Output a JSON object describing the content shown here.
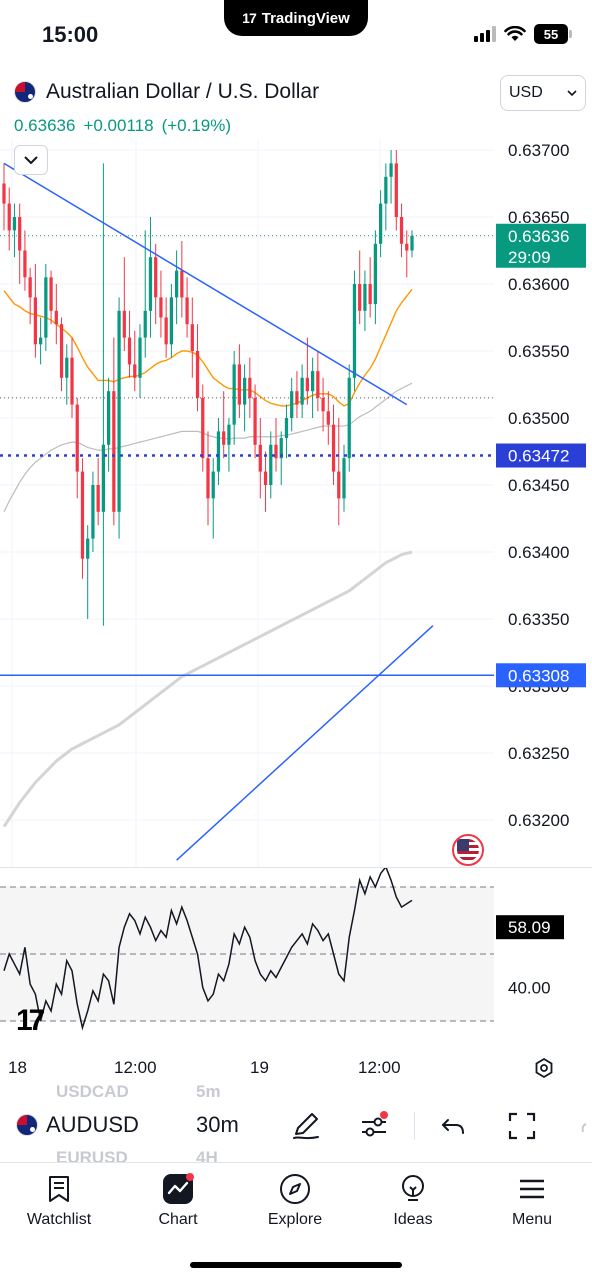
{
  "status_bar": {
    "time": "15:00",
    "battery": "55",
    "app_name": "TradingView"
  },
  "symbol": {
    "full_name": "Australian Dollar / U.S. Dollar",
    "last_price": "0.63636",
    "change": "+0.00118",
    "change_pct": "(+0.19%)",
    "currency": "USD"
  },
  "price_axis": {
    "ticks": [
      "0.63700",
      "0.63650",
      "0.63600",
      "0.63550",
      "0.63500",
      "0.63450",
      "0.63400",
      "0.63350",
      "0.63300",
      "0.63250",
      "0.63200"
    ],
    "last_price_tag": "0.63636",
    "countdown_tag": "29:09",
    "alert_line_tag": "0.63472",
    "horizontal_line_tag": "0.63308"
  },
  "indicator_pane": {
    "value_tag": "58.09",
    "level_label": "40.00"
  },
  "time_axis": {
    "labels": [
      "18",
      "12:00",
      "19",
      "12:00"
    ]
  },
  "toolbar": {
    "ghost_top_symbol": "USDCAD",
    "ghost_top_interval": "5m",
    "ghost_bottom_symbol": "EURUSD",
    "ghost_bottom_interval": "4H",
    "symbol": "AUDUSD",
    "interval": "30m"
  },
  "nav": [
    {
      "label": "Watchlist",
      "icon": "watchlist-icon"
    },
    {
      "label": "Chart",
      "icon": "chart-icon"
    },
    {
      "label": "Explore",
      "icon": "compass-icon"
    },
    {
      "label": "Ideas",
      "icon": "lightbulb-icon"
    },
    {
      "label": "Menu",
      "icon": "hamburger-icon"
    }
  ],
  "colors": {
    "up": "#089981",
    "down": "#f23645",
    "trendline": "#2962ff",
    "ma_fast": "#ff9800",
    "ma_slow": "#c8c8c8",
    "alert_line": "#2a3fd6"
  },
  "chart_data": {
    "type": "candlestick",
    "timeframe": "30m",
    "ylim": [
      0.6317,
      0.6373
    ],
    "candles": [
      [
        0.63675,
        0.6369,
        0.6364,
        0.6366
      ],
      [
        0.6366,
        0.63672,
        0.63625,
        0.6364
      ],
      [
        0.6364,
        0.6366,
        0.6362,
        0.6365
      ],
      [
        0.6365,
        0.6366,
        0.636,
        0.63625
      ],
      [
        0.63625,
        0.6364,
        0.63595,
        0.63605
      ],
      [
        0.63605,
        0.63612,
        0.6357,
        0.6359
      ],
      [
        0.6359,
        0.63615,
        0.63545,
        0.63555
      ],
      [
        0.63555,
        0.63575,
        0.6354,
        0.6356
      ],
      [
        0.6356,
        0.63615,
        0.6355,
        0.63605
      ],
      [
        0.63605,
        0.6361,
        0.6357,
        0.6358
      ],
      [
        0.6358,
        0.636,
        0.63555,
        0.6357
      ],
      [
        0.6357,
        0.63575,
        0.6352,
        0.6353
      ],
      [
        0.6353,
        0.63555,
        0.6351,
        0.63545
      ],
      [
        0.63545,
        0.6356,
        0.635,
        0.6351
      ],
      [
        0.6351,
        0.63515,
        0.6344,
        0.6346
      ],
      [
        0.6346,
        0.6347,
        0.6338,
        0.63395
      ],
      [
        0.63395,
        0.6342,
        0.6335,
        0.6341
      ],
      [
        0.6341,
        0.6346,
        0.634,
        0.6345
      ],
      [
        0.6345,
        0.6347,
        0.6342,
        0.6343
      ],
      [
        0.6343,
        0.6369,
        0.63345,
        0.6348
      ],
      [
        0.6348,
        0.6353,
        0.6346,
        0.6352
      ],
      [
        0.6352,
        0.6356,
        0.6342,
        0.6343
      ],
      [
        0.6343,
        0.6359,
        0.6341,
        0.6358
      ],
      [
        0.6358,
        0.6362,
        0.6355,
        0.6356
      ],
      [
        0.6356,
        0.6358,
        0.6353,
        0.6354
      ],
      [
        0.6354,
        0.63565,
        0.6352,
        0.6353
      ],
      [
        0.6353,
        0.6357,
        0.63515,
        0.6356
      ],
      [
        0.6356,
        0.6364,
        0.63545,
        0.6358
      ],
      [
        0.6358,
        0.6365,
        0.6356,
        0.6362
      ],
      [
        0.6362,
        0.6363,
        0.6357,
        0.6359
      ],
      [
        0.6359,
        0.6361,
        0.6356,
        0.63575
      ],
      [
        0.63575,
        0.6359,
        0.63545,
        0.63555
      ],
      [
        0.63555,
        0.636,
        0.63545,
        0.6359
      ],
      [
        0.6359,
        0.63625,
        0.6357,
        0.6361
      ],
      [
        0.6361,
        0.63632,
        0.63575,
        0.6359
      ],
      [
        0.6359,
        0.63605,
        0.6356,
        0.6357
      ],
      [
        0.6357,
        0.6359,
        0.6353,
        0.6355
      ],
      [
        0.6355,
        0.6357,
        0.63505,
        0.63515
      ],
      [
        0.63515,
        0.63525,
        0.6346,
        0.6347
      ],
      [
        0.6347,
        0.6349,
        0.6342,
        0.6344
      ],
      [
        0.6344,
        0.6347,
        0.6341,
        0.6346
      ],
      [
        0.6346,
        0.635,
        0.6345,
        0.6349
      ],
      [
        0.6349,
        0.6352,
        0.6347,
        0.6348
      ],
      [
        0.6348,
        0.635,
        0.6346,
        0.63495
      ],
      [
        0.63495,
        0.6355,
        0.6348,
        0.6354
      ],
      [
        0.6354,
        0.63555,
        0.635,
        0.6351
      ],
      [
        0.6351,
        0.6354,
        0.6349,
        0.6353
      ],
      [
        0.6353,
        0.63545,
        0.635,
        0.63515
      ],
      [
        0.63515,
        0.63525,
        0.6347,
        0.6348
      ],
      [
        0.6348,
        0.635,
        0.6344,
        0.6346
      ],
      [
        0.6346,
        0.63475,
        0.6343,
        0.6345
      ],
      [
        0.6345,
        0.6349,
        0.6344,
        0.6348
      ],
      [
        0.6348,
        0.635,
        0.6346,
        0.6347
      ],
      [
        0.6347,
        0.6349,
        0.6345,
        0.63485
      ],
      [
        0.63485,
        0.6351,
        0.6347,
        0.635
      ],
      [
        0.635,
        0.6353,
        0.6349,
        0.6352
      ],
      [
        0.6352,
        0.63535,
        0.635,
        0.6351
      ],
      [
        0.6351,
        0.6354,
        0.635,
        0.6353
      ],
      [
        0.6353,
        0.6356,
        0.6351,
        0.6352
      ],
      [
        0.6352,
        0.63545,
        0.635,
        0.63535
      ],
      [
        0.63535,
        0.6355,
        0.63505,
        0.63515
      ],
      [
        0.63515,
        0.6353,
        0.6349,
        0.63505
      ],
      [
        0.63505,
        0.6352,
        0.6348,
        0.63495
      ],
      [
        0.63495,
        0.6351,
        0.6345,
        0.6346
      ],
      [
        0.6346,
        0.635,
        0.6342,
        0.6344
      ],
      [
        0.6344,
        0.6348,
        0.6343,
        0.6347
      ],
      [
        0.6347,
        0.6354,
        0.6346,
        0.6353
      ],
      [
        0.6353,
        0.6361,
        0.6352,
        0.636
      ],
      [
        0.636,
        0.63625,
        0.6357,
        0.6358
      ],
      [
        0.6358,
        0.6361,
        0.63565,
        0.636
      ],
      [
        0.636,
        0.6362,
        0.63575,
        0.63585
      ],
      [
        0.63585,
        0.6364,
        0.6357,
        0.6363
      ],
      [
        0.6363,
        0.6367,
        0.6362,
        0.6366
      ],
      [
        0.6366,
        0.6369,
        0.6364,
        0.6368
      ],
      [
        0.6368,
        0.637,
        0.6366,
        0.6369
      ],
      [
        0.6369,
        0.637,
        0.6364,
        0.6365
      ],
      [
        0.6365,
        0.6366,
        0.6362,
        0.6363
      ],
      [
        0.6363,
        0.6364,
        0.63605,
        0.63625
      ],
      [
        0.63625,
        0.6364,
        0.6362,
        0.63636
      ]
    ],
    "ma_fast": [
      0.63595,
      0.6359,
      0.63585,
      0.63583,
      0.6358,
      0.63578,
      0.63577,
      0.63576,
      0.63575,
      0.63573,
      0.6357,
      0.63567,
      0.63564,
      0.6356,
      0.63553,
      0.63545,
      0.63538,
      0.63533,
      0.63528,
      0.63528,
      0.63528,
      0.63527,
      0.63529,
      0.6353,
      0.63531,
      0.63531,
      0.63532,
      0.63534,
      0.63537,
      0.6354,
      0.63542,
      0.63543,
      0.63545,
      0.63548,
      0.6355,
      0.6355,
      0.63549,
      0.63547,
      0.63542,
      0.63536,
      0.6353,
      0.63527,
      0.63524,
      0.63522,
      0.63522,
      0.63521,
      0.63521,
      0.63521,
      0.63519,
      0.63516,
      0.63513,
      0.63511,
      0.6351,
      0.63509,
      0.63509,
      0.6351,
      0.63511,
      0.63513,
      0.63515,
      0.63517,
      0.63518,
      0.63518,
      0.63518,
      0.63516,
      0.63512,
      0.63509,
      0.63511,
      0.63519,
      0.63526,
      0.63532,
      0.63537,
      0.63544,
      0.63553,
      0.63562,
      0.63571,
      0.6358,
      0.63586,
      0.63591,
      0.63596
    ],
    "ma_mid": [
      0.6343,
      0.63438,
      0.63445,
      0.63452,
      0.63458,
      0.63463,
      0.63467,
      0.6347,
      0.63473,
      0.63476,
      0.63478,
      0.6348,
      0.63481,
      0.63482,
      0.63482,
      0.6348,
      0.63478,
      0.63477,
      0.63476,
      0.63476,
      0.63477,
      0.63477,
      0.63478,
      0.63479,
      0.6348,
      0.63481,
      0.63482,
      0.63483,
      0.63484,
      0.63485,
      0.63486,
      0.63487,
      0.63488,
      0.63489,
      0.6349,
      0.6349,
      0.6349,
      0.6349,
      0.63489,
      0.63487,
      0.63486,
      0.63485,
      0.63485,
      0.63484,
      0.63485,
      0.63485,
      0.63485,
      0.63486,
      0.63486,
      0.63486,
      0.63486,
      0.63486,
      0.63486,
      0.63487,
      0.63487,
      0.63488,
      0.63489,
      0.6349,
      0.63491,
      0.63492,
      0.63493,
      0.63494,
      0.63494,
      0.63494,
      0.63494,
      0.63494,
      0.63495,
      0.63498,
      0.63501,
      0.63503,
      0.63505,
      0.63508,
      0.63511,
      0.63514,
      0.63517,
      0.6352,
      0.63522,
      0.63524,
      0.63526
    ],
    "ma_slow": [
      0.63195,
      0.63201,
      0.63207,
      0.63213,
      0.63218,
      0.63223,
      0.63228,
      0.63232,
      0.63236,
      0.6324,
      0.63244,
      0.63247,
      0.6325,
      0.63253,
      0.63255,
      0.63257,
      0.63259,
      0.63261,
      0.63263,
      0.63265,
      0.63267,
      0.63269,
      0.63271,
      0.63274,
      0.63277,
      0.6328,
      0.63283,
      0.63286,
      0.63289,
      0.63292,
      0.63295,
      0.63298,
      0.63301,
      0.63304,
      0.63307,
      0.63309,
      0.63311,
      0.63313,
      0.63315,
      0.63317,
      0.63319,
      0.63321,
      0.63323,
      0.63325,
      0.63327,
      0.63329,
      0.63331,
      0.63333,
      0.63335,
      0.63337,
      0.63339,
      0.63341,
      0.63343,
      0.63345,
      0.63347,
      0.63349,
      0.63351,
      0.63353,
      0.63355,
      0.63357,
      0.63359,
      0.63361,
      0.63363,
      0.63365,
      0.63367,
      0.63369,
      0.63371,
      0.63374,
      0.63377,
      0.6338,
      0.63383,
      0.63386,
      0.63389,
      0.63392,
      0.63394,
      0.63396,
      0.63398,
      0.63399,
      0.634
    ],
    "rsi": [
      45,
      50,
      47,
      44,
      52,
      41,
      38,
      30,
      36,
      33,
      41,
      38,
      48,
      45,
      35,
      28,
      33,
      39,
      36,
      44,
      42,
      35,
      52,
      58,
      62,
      60,
      56,
      61,
      58,
      54,
      57,
      55,
      63,
      59,
      64,
      60,
      55,
      50,
      40,
      36,
      38,
      44,
      42,
      47,
      56,
      53,
      58,
      55,
      48,
      44,
      42,
      45,
      43,
      46,
      49,
      52,
      54,
      56,
      53,
      59,
      57,
      54,
      56,
      50,
      44,
      42,
      55,
      63,
      72,
      68,
      73,
      70,
      74,
      76,
      72,
      67,
      64,
      65,
      66
    ],
    "rsi_levels": [
      70,
      50,
      30
    ],
    "horizontal_levels": [
      0.63472,
      0.63308,
      0.63515
    ],
    "trendlines": [
      {
        "from": [
          0,
          0.6369
        ],
        "to": [
          77,
          0.6351
        ]
      },
      {
        "from": [
          33,
          0.6317
        ],
        "to": [
          82,
          0.63345
        ]
      }
    ]
  }
}
